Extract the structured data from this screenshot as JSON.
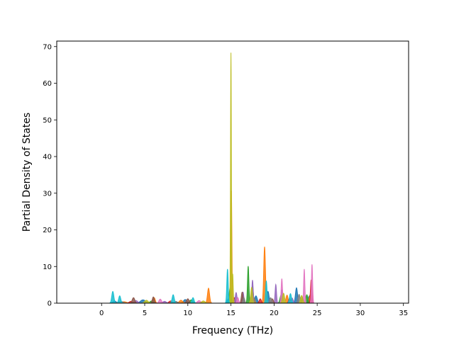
{
  "chart_data": {
    "type": "area",
    "title": "",
    "xlabel": "Frequency (THz)",
    "ylabel": "Partial Density of States",
    "xlim": [
      -5.2,
      35.6
    ],
    "ylim": [
      0,
      71.5
    ],
    "xticks": [
      0,
      5,
      10,
      15,
      20,
      25,
      30,
      35
    ],
    "yticks": [
      0,
      10,
      20,
      30,
      40,
      50,
      60,
      70
    ],
    "grid": false,
    "legend": "none",
    "baseline_range": [
      -3.3,
      33.8
    ],
    "series": [
      {
        "color": "#1f77b4",
        "peaks": [
          [
            1.5,
            0.6,
            0.2
          ],
          [
            4.8,
            0.9,
            0.3
          ],
          [
            9.7,
            1.0,
            0.2
          ],
          [
            14.7,
            1.2,
            0.12
          ],
          [
            17.9,
            2.0,
            0.15
          ],
          [
            19.3,
            3.2,
            0.12
          ],
          [
            20.9,
            3.6,
            0.12
          ],
          [
            22.6,
            4.2,
            0.12
          ],
          [
            24.1,
            2.0,
            0.15
          ]
        ]
      },
      {
        "color": "#ff7f0e",
        "peaks": [
          [
            2.6,
            0.4,
            0.3
          ],
          [
            6.1,
            1.5,
            0.12
          ],
          [
            9.2,
            0.8,
            0.2
          ],
          [
            12.4,
            4.1,
            0.12
          ],
          [
            15.05,
            31.0,
            0.06
          ],
          [
            17.6,
            1.8,
            0.12
          ],
          [
            18.9,
            15.4,
            0.1
          ],
          [
            21.5,
            2.2,
            0.12
          ],
          [
            24.2,
            2.4,
            0.12
          ]
        ]
      },
      {
        "color": "#2ca02c",
        "peaks": [
          [
            5.8,
            0.6,
            0.2
          ],
          [
            10.4,
            0.9,
            0.2
          ],
          [
            14.9,
            4.2,
            0.1
          ],
          [
            17.0,
            10.1,
            0.08
          ],
          [
            17.5,
            4.5,
            0.1
          ],
          [
            20.8,
            2.1,
            0.12
          ],
          [
            23.8,
            2.3,
            0.12
          ]
        ]
      },
      {
        "color": "#d62728",
        "peaks": [
          [
            3.4,
            0.5,
            0.2
          ],
          [
            8.0,
            0.6,
            0.2
          ],
          [
            15.4,
            1.5,
            0.1
          ],
          [
            18.4,
            1.2,
            0.12
          ],
          [
            21.8,
            1.3,
            0.12
          ],
          [
            24.3,
            6.4,
            0.08
          ]
        ]
      },
      {
        "color": "#9467bd",
        "peaks": [
          [
            4.0,
            0.7,
            0.2
          ],
          [
            7.3,
            0.5,
            0.2
          ],
          [
            15.6,
            2.9,
            0.1
          ],
          [
            16.4,
            3.0,
            0.1
          ],
          [
            17.5,
            6.3,
            0.08
          ],
          [
            20.2,
            5.1,
            0.08
          ],
          [
            22.1,
            1.4,
            0.12
          ]
        ]
      },
      {
        "color": "#8c564b",
        "peaks": [
          [
            3.7,
            1.5,
            0.15
          ],
          [
            6.0,
            1.7,
            0.12
          ],
          [
            10.0,
            1.2,
            0.15
          ],
          [
            16.3,
            3.0,
            0.1
          ],
          [
            19.8,
            1.2,
            0.12
          ],
          [
            23.3,
            1.6,
            0.12
          ]
        ]
      },
      {
        "color": "#e377c2",
        "peaks": [
          [
            6.8,
            1.1,
            0.15
          ],
          [
            11.3,
            0.7,
            0.2
          ],
          [
            15.8,
            1.5,
            0.1
          ],
          [
            20.9,
            6.7,
            0.08
          ],
          [
            23.5,
            9.3,
            0.07
          ],
          [
            24.4,
            10.6,
            0.07
          ]
        ]
      },
      {
        "color": "#7f7f7f",
        "peaks": [
          [
            2.2,
            0.5,
            0.3
          ],
          [
            8.6,
            0.5,
            0.2
          ],
          [
            16.5,
            1.5,
            0.1
          ],
          [
            19.6,
            1.5,
            0.12
          ],
          [
            22.9,
            2.4,
            0.12
          ]
        ]
      },
      {
        "color": "#bcbd22",
        "peaks": [
          [
            5.2,
            0.8,
            0.2
          ],
          [
            11.8,
            0.6,
            0.2
          ],
          [
            15.0,
            68.3,
            0.05
          ],
          [
            15.2,
            8.0,
            0.06
          ],
          [
            17.4,
            4.3,
            0.1
          ],
          [
            21.1,
            2.7,
            0.12
          ],
          [
            23.2,
            2.1,
            0.12
          ]
        ]
      },
      {
        "color": "#17becf",
        "peaks": [
          [
            1.3,
            3.2,
            0.12
          ],
          [
            2.1,
            2.0,
            0.12
          ],
          [
            8.3,
            2.3,
            0.12
          ],
          [
            10.6,
            1.5,
            0.12
          ],
          [
            14.6,
            9.3,
            0.08
          ],
          [
            19.1,
            6.1,
            0.08
          ],
          [
            21.9,
            2.6,
            0.12
          ]
        ]
      }
    ]
  }
}
